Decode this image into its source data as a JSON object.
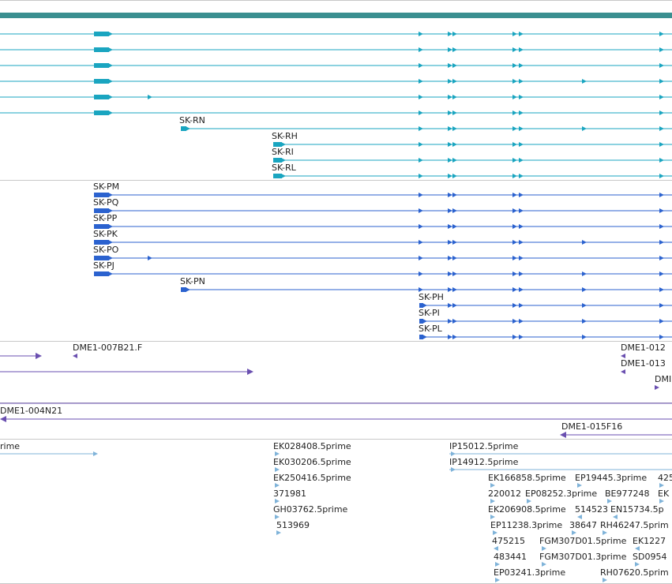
{
  "colors": {
    "gene_summary": "#3a8f90",
    "transcript_cyan": "#1aa5c0",
    "transcript_blue": "#2b62cf",
    "clone": "#6a4fb0",
    "est": "#7fb3d9",
    "separator": "#c8c8c8"
  },
  "tracks": {
    "gene_summary": {
      "name": "gene-summary-track"
    },
    "transcripts_a": {
      "labels": [
        "SK-RN",
        "SK-RH",
        "SK-RI",
        "SK-RL"
      ]
    },
    "transcripts_b": {
      "labels": [
        "SK-PM",
        "SK-PQ",
        "SK-PP",
        "SK-PK",
        "SK-PO",
        "SK-PJ",
        "SK-PN",
        "SK-PH",
        "SK-PI",
        "SK-PL"
      ]
    },
    "clones": {
      "labels": [
        "DME1-007B21.F",
        "DME1-012",
        "DME1-013",
        "DMI",
        "DME1-004N21",
        "DME1-015F16"
      ]
    },
    "ests": {
      "labels": [
        "rime",
        "EK028408.5prime",
        "EK030206.5prime",
        "EK250416.5prime",
        "371981",
        "GH03762.5prime",
        "513969",
        "IP15012.5prime",
        "IP14912.5prime",
        "EK166858.5prime",
        "EP19445.3prime",
        "425",
        "220012",
        "EP08252.3prime",
        "BE977248",
        "EK",
        "EK206908.5prime",
        "514523",
        "EN15734.5p",
        "EP11238.3prime",
        "38647",
        "RH46247.5prim",
        "475215",
        "FGM307D01.5prime",
        "EK1227",
        "483441",
        "FGM307D01.3prime",
        "SD0954",
        "EP03241.3prime",
        "RH07620.5prim"
      ]
    }
  }
}
